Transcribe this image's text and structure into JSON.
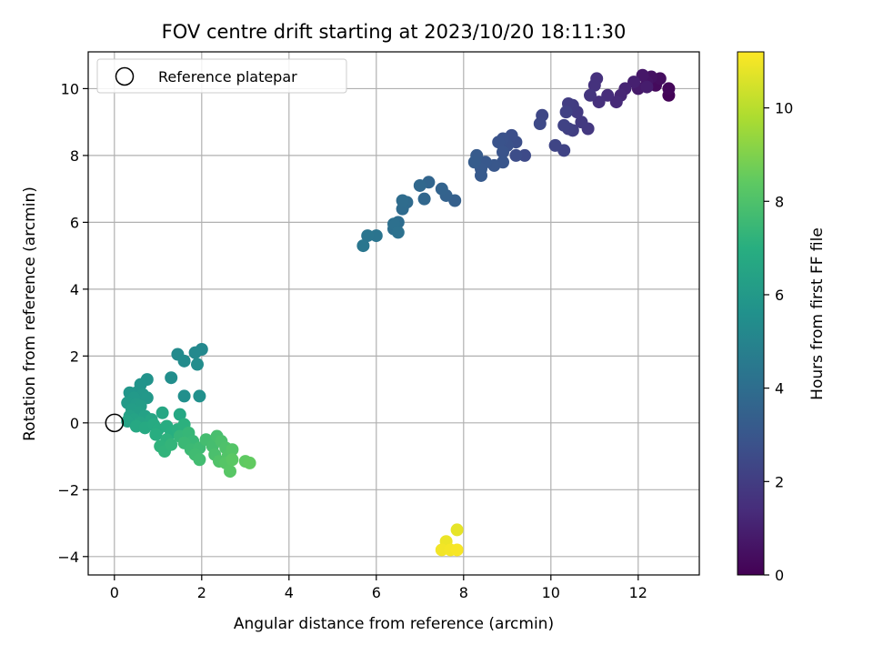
{
  "chart_data": {
    "type": "scatter",
    "title": "FOV centre drift starting at 2023/10/20 18:11:30",
    "xlabel": "Angular distance from reference (arcmin)",
    "ylabel": "Rotation from reference (arcmin)",
    "xlim": [
      -0.6,
      13.4
    ],
    "ylim": [
      -4.55,
      11.1
    ],
    "xticks": [
      0,
      2,
      4,
      6,
      8,
      10,
      12
    ],
    "yticks": [
      -4,
      -2,
      0,
      2,
      4,
      6,
      8,
      10
    ],
    "grid": true,
    "legend": {
      "position": "top-left",
      "entries": [
        "Reference platepar"
      ]
    },
    "reference": {
      "x": 0,
      "y": 0
    },
    "colorbar": {
      "label": "Hours from first FF file",
      "range": [
        0,
        11.2
      ],
      "ticks": [
        0,
        2,
        4,
        6,
        8,
        10
      ],
      "colormap": "viridis"
    },
    "points": [
      {
        "x": 12.7,
        "y": 9.8,
        "c": 0.1
      },
      {
        "x": 12.7,
        "y": 10.0,
        "c": 0.2
      },
      {
        "x": 12.4,
        "y": 10.1,
        "c": 0.3
      },
      {
        "x": 12.5,
        "y": 10.3,
        "c": 0.4
      },
      {
        "x": 12.3,
        "y": 10.35,
        "c": 0.5
      },
      {
        "x": 12.2,
        "y": 10.2,
        "c": 0.6
      },
      {
        "x": 12.1,
        "y": 10.4,
        "c": 0.7
      },
      {
        "x": 12.0,
        "y": 10.0,
        "c": 0.8
      },
      {
        "x": 12.2,
        "y": 10.05,
        "c": 0.9
      },
      {
        "x": 11.9,
        "y": 10.2,
        "c": 1.0
      },
      {
        "x": 11.7,
        "y": 10.0,
        "c": 1.1
      },
      {
        "x": 11.6,
        "y": 9.8,
        "c": 1.2
      },
      {
        "x": 11.5,
        "y": 9.6,
        "c": 1.3
      },
      {
        "x": 11.3,
        "y": 9.8,
        "c": 1.4
      },
      {
        "x": 11.1,
        "y": 9.6,
        "c": 1.5
      },
      {
        "x": 11.05,
        "y": 10.3,
        "c": 1.55
      },
      {
        "x": 11.0,
        "y": 10.1,
        "c": 1.6
      },
      {
        "x": 10.9,
        "y": 9.8,
        "c": 1.7
      },
      {
        "x": 10.85,
        "y": 8.8,
        "c": 1.8
      },
      {
        "x": 10.7,
        "y": 9.0,
        "c": 1.85
      },
      {
        "x": 10.6,
        "y": 9.3,
        "c": 1.9
      },
      {
        "x": 10.5,
        "y": 9.5,
        "c": 1.95
      },
      {
        "x": 10.4,
        "y": 9.55,
        "c": 2.0
      },
      {
        "x": 10.5,
        "y": 8.75,
        "c": 2.05
      },
      {
        "x": 10.4,
        "y": 8.8,
        "c": 2.1
      },
      {
        "x": 10.35,
        "y": 9.3,
        "c": 2.15
      },
      {
        "x": 10.3,
        "y": 8.9,
        "c": 2.2
      },
      {
        "x": 10.3,
        "y": 8.15,
        "c": 2.25
      },
      {
        "x": 10.1,
        "y": 8.3,
        "c": 2.3
      },
      {
        "x": 9.8,
        "y": 9.2,
        "c": 2.4
      },
      {
        "x": 9.75,
        "y": 8.95,
        "c": 2.45
      },
      {
        "x": 9.4,
        "y": 8.0,
        "c": 2.5
      },
      {
        "x": 9.2,
        "y": 8.0,
        "c": 2.6
      },
      {
        "x": 9.2,
        "y": 8.4,
        "c": 2.65
      },
      {
        "x": 9.1,
        "y": 8.6,
        "c": 2.7
      },
      {
        "x": 9.0,
        "y": 8.3,
        "c": 2.75
      },
      {
        "x": 8.9,
        "y": 8.5,
        "c": 2.8
      },
      {
        "x": 8.8,
        "y": 8.4,
        "c": 2.85
      },
      {
        "x": 8.9,
        "y": 8.1,
        "c": 2.9
      },
      {
        "x": 8.9,
        "y": 7.8,
        "c": 2.95
      },
      {
        "x": 8.7,
        "y": 7.7,
        "c": 3.0
      },
      {
        "x": 8.5,
        "y": 7.8,
        "c": 3.05
      },
      {
        "x": 8.4,
        "y": 7.6,
        "c": 3.1
      },
      {
        "x": 8.4,
        "y": 7.4,
        "c": 3.15
      },
      {
        "x": 8.3,
        "y": 8.0,
        "c": 3.2
      },
      {
        "x": 8.25,
        "y": 7.8,
        "c": 3.25
      },
      {
        "x": 7.8,
        "y": 6.65,
        "c": 3.4
      },
      {
        "x": 7.6,
        "y": 6.8,
        "c": 3.5
      },
      {
        "x": 7.5,
        "y": 7.0,
        "c": 3.55
      },
      {
        "x": 7.2,
        "y": 7.2,
        "c": 3.65
      },
      {
        "x": 7.1,
        "y": 6.7,
        "c": 3.7
      },
      {
        "x": 7.0,
        "y": 7.1,
        "c": 3.75
      },
      {
        "x": 6.7,
        "y": 6.6,
        "c": 3.85
      },
      {
        "x": 6.6,
        "y": 6.4,
        "c": 3.9
      },
      {
        "x": 6.6,
        "y": 6.65,
        "c": 3.95
      },
      {
        "x": 6.5,
        "y": 6.0,
        "c": 4.0
      },
      {
        "x": 6.4,
        "y": 5.8,
        "c": 4.05
      },
      {
        "x": 6.4,
        "y": 5.95,
        "c": 4.1
      },
      {
        "x": 6.5,
        "y": 5.7,
        "c": 4.15
      },
      {
        "x": 6.0,
        "y": 5.6,
        "c": 4.3
      },
      {
        "x": 5.8,
        "y": 5.6,
        "c": 4.35
      },
      {
        "x": 5.7,
        "y": 5.3,
        "c": 4.4
      },
      {
        "x": 2.0,
        "y": 2.2,
        "c": 5.2
      },
      {
        "x": 1.85,
        "y": 2.1,
        "c": 5.25
      },
      {
        "x": 1.45,
        "y": 2.05,
        "c": 5.3
      },
      {
        "x": 1.6,
        "y": 1.85,
        "c": 5.35
      },
      {
        "x": 1.9,
        "y": 1.75,
        "c": 5.4
      },
      {
        "x": 1.3,
        "y": 1.35,
        "c": 5.45
      },
      {
        "x": 1.6,
        "y": 0.8,
        "c": 5.5
      },
      {
        "x": 1.95,
        "y": 0.8,
        "c": 5.55
      },
      {
        "x": 0.75,
        "y": 1.3,
        "c": 5.7
      },
      {
        "x": 0.6,
        "y": 1.15,
        "c": 5.75
      },
      {
        "x": 0.5,
        "y": 0.9,
        "c": 5.8
      },
      {
        "x": 0.35,
        "y": 0.9,
        "c": 5.85
      },
      {
        "x": 0.65,
        "y": 0.85,
        "c": 5.9
      },
      {
        "x": 0.75,
        "y": 0.75,
        "c": 5.95
      },
      {
        "x": 0.45,
        "y": 0.75,
        "c": 6.0
      },
      {
        "x": 0.3,
        "y": 0.6,
        "c": 6.05
      },
      {
        "x": 0.5,
        "y": 0.55,
        "c": 6.1
      },
      {
        "x": 0.6,
        "y": 0.5,
        "c": 6.15
      },
      {
        "x": 0.4,
        "y": 0.4,
        "c": 6.2
      },
      {
        "x": 0.55,
        "y": 0.3,
        "c": 6.25
      },
      {
        "x": 0.35,
        "y": 0.2,
        "c": 6.3
      },
      {
        "x": 0.7,
        "y": 0.2,
        "c": 6.35
      },
      {
        "x": 0.45,
        "y": 0.1,
        "c": 6.4
      },
      {
        "x": 0.3,
        "y": 0.05,
        "c": 6.45
      },
      {
        "x": 0.6,
        "y": 0.0,
        "c": 6.5
      },
      {
        "x": 0.85,
        "y": 0.1,
        "c": 6.55
      },
      {
        "x": 1.1,
        "y": 0.3,
        "c": 6.6
      },
      {
        "x": 1.5,
        "y": 0.25,
        "c": 6.65
      },
      {
        "x": 0.5,
        "y": -0.1,
        "c": 6.7
      },
      {
        "x": 0.7,
        "y": -0.15,
        "c": 6.75
      },
      {
        "x": 0.9,
        "y": -0.05,
        "c": 6.8
      },
      {
        "x": 1.0,
        "y": -0.2,
        "c": 6.85
      },
      {
        "x": 1.2,
        "y": -0.1,
        "c": 6.9
      },
      {
        "x": 0.95,
        "y": -0.35,
        "c": 6.95
      },
      {
        "x": 1.3,
        "y": -0.3,
        "c": 7.0
      },
      {
        "x": 1.45,
        "y": -0.2,
        "c": 7.05
      },
      {
        "x": 1.6,
        "y": -0.05,
        "c": 7.1
      },
      {
        "x": 1.2,
        "y": -0.5,
        "c": 7.15
      },
      {
        "x": 1.05,
        "y": -0.7,
        "c": 7.2
      },
      {
        "x": 1.15,
        "y": -0.85,
        "c": 7.25
      },
      {
        "x": 1.3,
        "y": -0.65,
        "c": 7.3
      },
      {
        "x": 1.5,
        "y": -0.4,
        "c": 7.35
      },
      {
        "x": 1.7,
        "y": -0.3,
        "c": 7.4
      },
      {
        "x": 1.8,
        "y": -0.55,
        "c": 7.45
      },
      {
        "x": 1.6,
        "y": -0.6,
        "c": 7.5
      },
      {
        "x": 1.75,
        "y": -0.8,
        "c": 7.55
      },
      {
        "x": 1.95,
        "y": -0.75,
        "c": 7.6
      },
      {
        "x": 1.85,
        "y": -0.95,
        "c": 7.65
      },
      {
        "x": 1.95,
        "y": -1.1,
        "c": 7.7
      },
      {
        "x": 2.1,
        "y": -0.5,
        "c": 7.75
      },
      {
        "x": 2.25,
        "y": -0.7,
        "c": 7.8
      },
      {
        "x": 2.35,
        "y": -0.4,
        "c": 7.85
      },
      {
        "x": 2.3,
        "y": -0.95,
        "c": 7.9
      },
      {
        "x": 2.45,
        "y": -0.55,
        "c": 7.95
      },
      {
        "x": 2.55,
        "y": -0.75,
        "c": 8.0
      },
      {
        "x": 2.4,
        "y": -1.15,
        "c": 8.05
      },
      {
        "x": 2.6,
        "y": -1.0,
        "c": 8.1
      },
      {
        "x": 2.7,
        "y": -0.8,
        "c": 8.15
      },
      {
        "x": 2.55,
        "y": -1.2,
        "c": 8.2
      },
      {
        "x": 2.65,
        "y": -1.45,
        "c": 8.25
      },
      {
        "x": 2.7,
        "y": -1.1,
        "c": 8.3
      },
      {
        "x": 3.0,
        "y": -1.15,
        "c": 8.4
      },
      {
        "x": 3.1,
        "y": -1.2,
        "c": 8.45
      },
      {
        "x": 7.85,
        "y": -3.2,
        "c": 10.8
      },
      {
        "x": 7.6,
        "y": -3.55,
        "c": 10.9
      },
      {
        "x": 7.5,
        "y": -3.8,
        "c": 11.0
      },
      {
        "x": 7.7,
        "y": -3.8,
        "c": 11.05
      },
      {
        "x": 7.85,
        "y": -3.8,
        "c": 11.1
      }
    ]
  }
}
